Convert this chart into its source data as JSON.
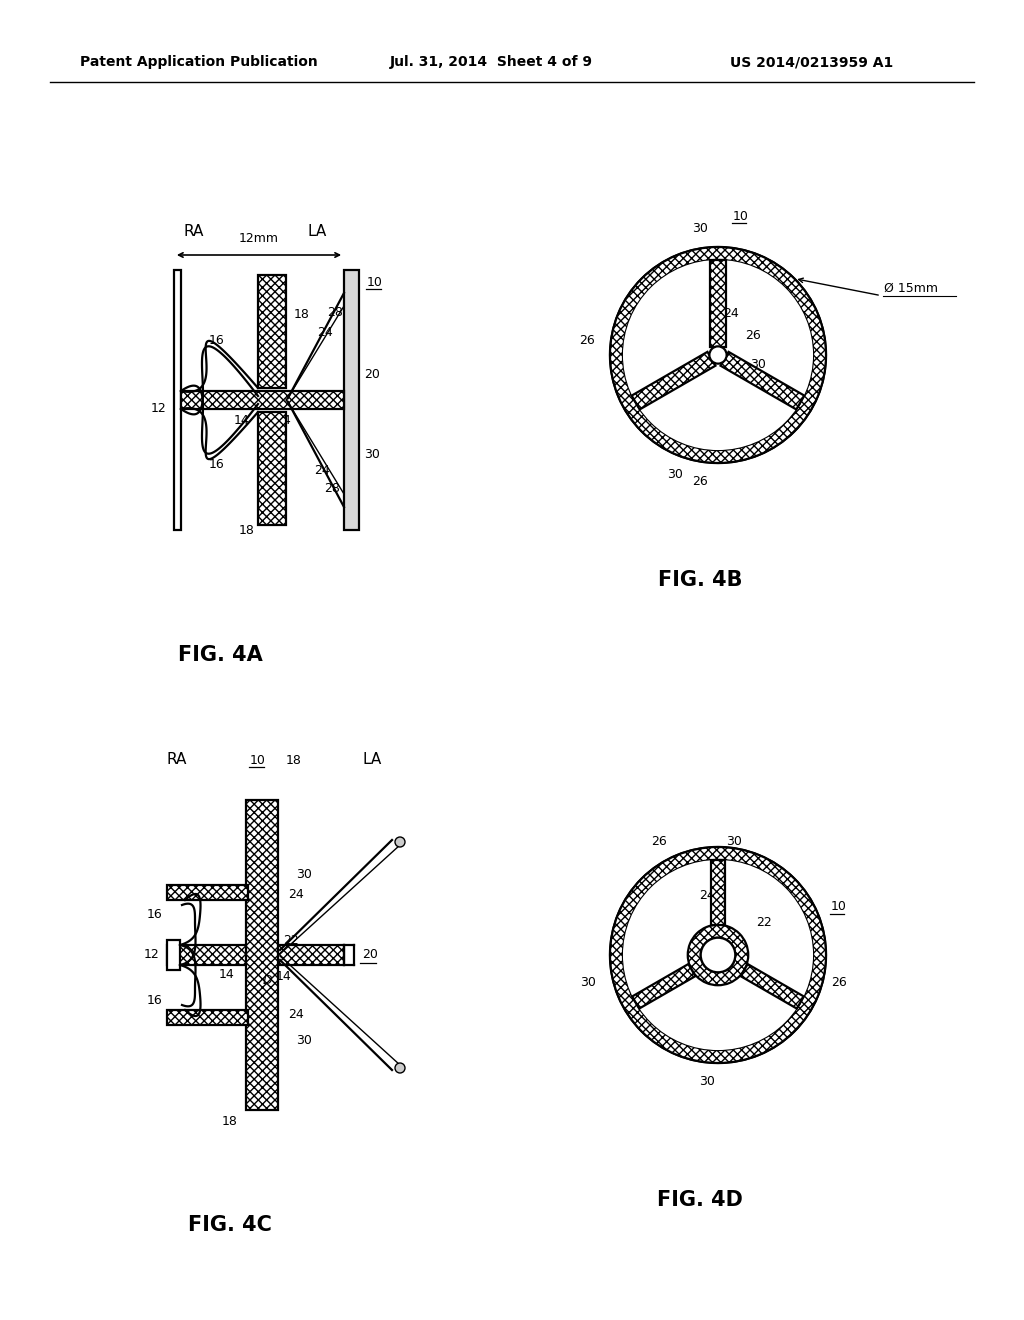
{
  "header_left": "Patent Application Publication",
  "header_mid": "Jul. 31, 2014  Sheet 4 of 9",
  "header_right": "US 2014/0213959 A1",
  "fig4a_label": "FIG. 4A",
  "fig4b_label": "FIG. 4B",
  "fig4c_label": "FIG. 4C",
  "fig4d_label": "FIG. 4D",
  "background_color": "#ffffff",
  "line_color": "#000000"
}
